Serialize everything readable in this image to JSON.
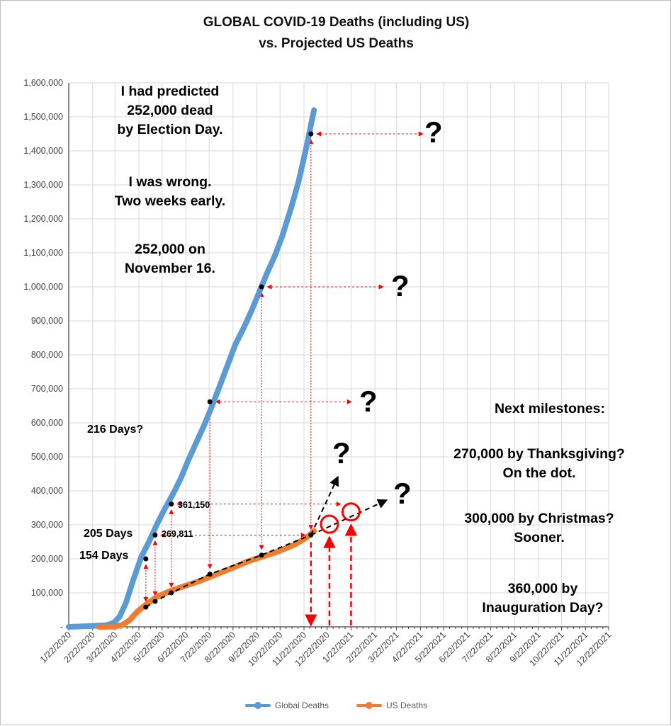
{
  "title_line1": "GLOBAL COVID-19 Deaths (including US)",
  "title_line2": "vs. Projected US Deaths",
  "colors": {
    "global": "#5b9bd5",
    "us": "#ed7d31",
    "marker": "#000000",
    "arrow_red": "#ff0000",
    "grid": "#d9d9d9"
  },
  "chart_data": {
    "type": "line",
    "x_start": "1/22/2020",
    "x_end": "12/22/2021",
    "ylim": [
      0,
      1600000
    ],
    "y_ticks": [
      "-",
      "100,000",
      "200,000",
      "300,000",
      "400,000",
      "500,000",
      "600,000",
      "700,000",
      "800,000",
      "900,000",
      "1,000,000",
      "1,100,000",
      "1,200,000",
      "1,300,000",
      "1,400,000",
      "1,500,000",
      "1,600,000"
    ],
    "x_ticks": [
      "1/22/2020",
      "2/22/2020",
      "3/22/2020",
      "4/22/2020",
      "5/22/2020",
      "6/22/2020",
      "7/22/2020",
      "8/22/2020",
      "9/22/2020",
      "10/22/2020",
      "11/22/2020",
      "12/22/2020",
      "1/22/2021",
      "2/22/2021",
      "3/22/2021",
      "4/22/2021",
      "5/22/2021",
      "6/22/2021",
      "7/22/2021",
      "8/22/2021",
      "9/22/2021",
      "10/22/2021",
      "11/22/2021",
      "12/22/2021"
    ],
    "grid": true,
    "legend_position": "bottom",
    "series": [
      {
        "name": "Global Deaths",
        "points": [
          [
            "1/22/2020",
            0
          ],
          [
            "2/22/2020",
            2400
          ],
          [
            "3/10/2020",
            4500
          ],
          [
            "3/20/2020",
            11000
          ],
          [
            "3/28/2020",
            30000
          ],
          [
            "4/5/2020",
            70000
          ],
          [
            "4/15/2020",
            140000
          ],
          [
            "4/25/2020",
            205000
          ],
          [
            "5/5/2020",
            250000
          ],
          [
            "5/15/2020",
            300000
          ],
          [
            "5/25/2020",
            345000
          ],
          [
            "6/5/2020",
            390000
          ],
          [
            "6/15/2020",
            435000
          ],
          [
            "6/25/2020",
            490000
          ],
          [
            "7/5/2020",
            540000
          ],
          [
            "7/15/2020",
            590000
          ],
          [
            "7/25/2020",
            645000
          ],
          [
            "8/5/2020",
            710000
          ],
          [
            "8/15/2020",
            770000
          ],
          [
            "8/25/2020",
            830000
          ],
          [
            "9/5/2020",
            880000
          ],
          [
            "9/15/2020",
            930000
          ],
          [
            "9/25/2020",
            985000
          ],
          [
            "10/5/2020",
            1040000
          ],
          [
            "10/15/2020",
            1090000
          ],
          [
            "10/25/2020",
            1150000
          ],
          [
            "11/5/2020",
            1230000
          ],
          [
            "11/15/2020",
            1310000
          ],
          [
            "11/25/2020",
            1410000
          ],
          [
            "12/5/2020",
            1520000
          ]
        ]
      },
      {
        "name": "US Deaths",
        "points": [
          [
            "3/1/2020",
            0
          ],
          [
            "3/22/2020",
            800
          ],
          [
            "4/1/2020",
            6000
          ],
          [
            "4/10/2020",
            20000
          ],
          [
            "4/20/2020",
            45000
          ],
          [
            "5/1/2020",
            65000
          ],
          [
            "5/15/2020",
            88000
          ],
          [
            "6/1/2020",
            105000
          ],
          [
            "6/20/2020",
            120000
          ],
          [
            "7/10/2020",
            135000
          ],
          [
            "8/1/2020",
            155000
          ],
          [
            "8/20/2020",
            172000
          ],
          [
            "9/10/2020",
            192000
          ],
          [
            "10/1/2020",
            208000
          ],
          [
            "10/20/2020",
            222000
          ],
          [
            "11/10/2020",
            242000
          ],
          [
            "11/25/2020",
            262000
          ],
          [
            "12/5/2020",
            282000
          ]
        ]
      }
    ],
    "milestones_global": [
      [
        "5/1/2020",
        200000
      ],
      [
        "5/13/2020",
        269811
      ],
      [
        "6/3/2020",
        361150
      ],
      [
        "7/23/2020",
        662000
      ],
      [
        "9/28/2020",
        1000000
      ],
      [
        "12/1/2020",
        1450000
      ]
    ],
    "milestones_us": [
      [
        "5/1/2020",
        58000
      ],
      [
        "5/13/2020",
        75000
      ],
      [
        "6/3/2020",
        100000
      ],
      [
        "7/23/2020",
        155000
      ],
      [
        "9/28/2020",
        211000
      ],
      [
        "12/1/2020",
        270000
      ]
    ],
    "projection_circles": [
      [
        "12/25/2020",
        302000
      ],
      [
        "1/22/2021",
        338000
      ]
    ],
    "annotations": {
      "predicted": [
        "I had predicted",
        "252,000 dead",
        "by Election Day."
      ],
      "wrong": [
        "I was wrong.",
        "Two weeks early."
      ],
      "on_date": [
        "252,000 on",
        "November 16."
      ],
      "next": "Next milestones:",
      "m1": [
        "270,000 by Thanksgiving?",
        "On the dot."
      ],
      "m2": [
        "300,000 by Christmas?",
        "Sooner."
      ],
      "m3": [
        "360,000 by",
        "Inauguration Day?"
      ],
      "d216": "216 Days?",
      "d205": "205 Days",
      "d154": "154 Days",
      "v361": "361,150",
      "v269": "269,811",
      "q": "?"
    }
  }
}
